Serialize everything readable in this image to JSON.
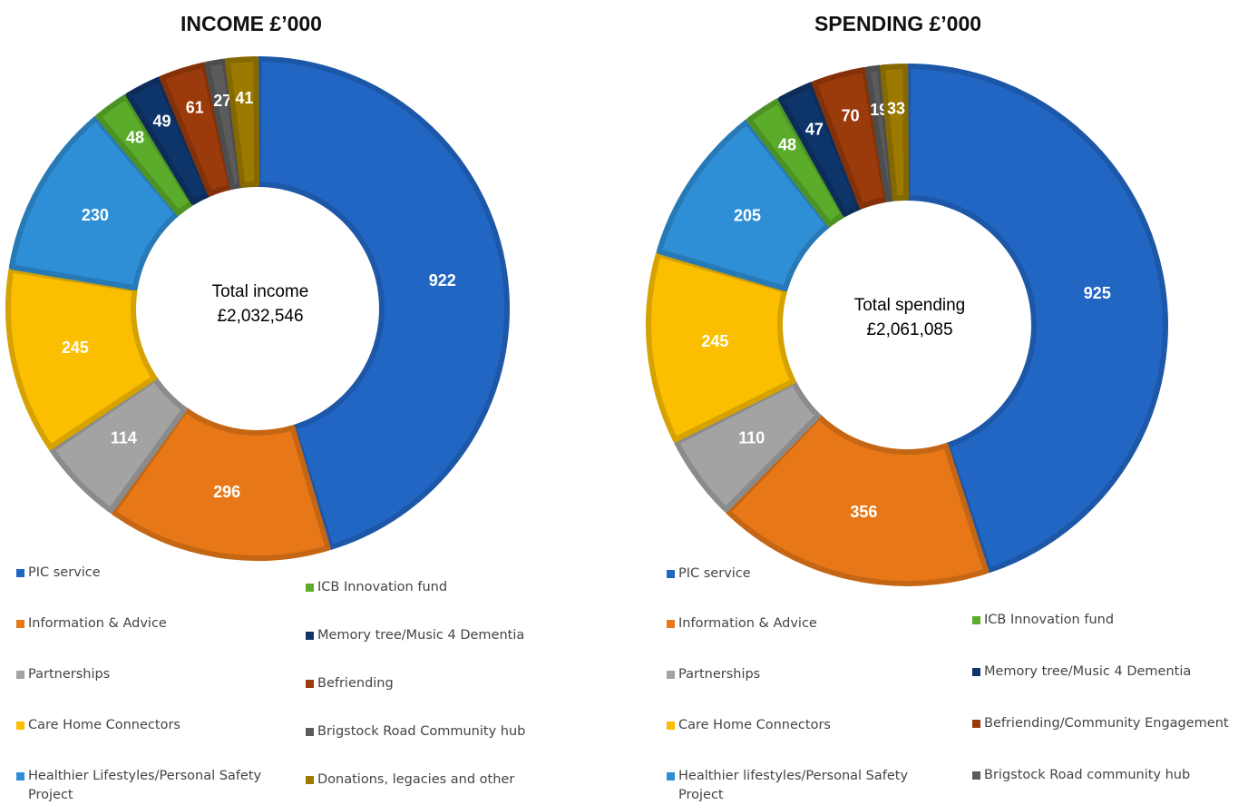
{
  "chart_data": [
    {
      "type": "donut",
      "title": "INCOME £’000",
      "center_text": "Total income",
      "center_value": "£2,032,546",
      "categories": [
        "PIC service",
        "Information & Advice",
        "Partnerships",
        "Care Home Connectors",
        "Healthier Lifestyles/Personal Safety Project",
        "ICB Innovation fund",
        "Memory tree/Music 4 Dementia",
        "Befriending",
        "Brigstock Road Community hub",
        "Donations, legacies and other"
      ],
      "values": [
        922,
        296,
        114,
        245,
        230,
        48,
        49,
        61,
        27,
        41
      ],
      "colors": [
        "#2266c4",
        "#e87817",
        "#a3a3a3",
        "#fbbe00",
        "#2f8fd6",
        "#5aac2a",
        "#0e3569",
        "#9b3a0a",
        "#5b5b5b",
        "#9c7a00"
      ]
    },
    {
      "type": "donut",
      "title": "SPENDING £’000",
      "center_text": "Total spending",
      "center_value": "£2,061,085",
      "categories": [
        "PIC service",
        "Information & Advice",
        "Partnerships",
        "Care Home Connectors",
        "Healthier lifestyles/Personal Safety Project",
        "ICB Innovation fund",
        "Memory tree/Music 4 Dementia",
        "Befriending/Community Engagement",
        "Brigstock Road community hub",
        null
      ],
      "values": [
        925,
        356,
        110,
        245,
        205,
        48,
        47,
        70,
        19,
        33
      ],
      "colors": [
        "#2266c4",
        "#e87817",
        "#a3a3a3",
        "#fbbe00",
        "#2f8fd6",
        "#5aac2a",
        "#0e3569",
        "#9b3a0a",
        "#5b5b5b",
        "#9c7a00"
      ]
    }
  ]
}
